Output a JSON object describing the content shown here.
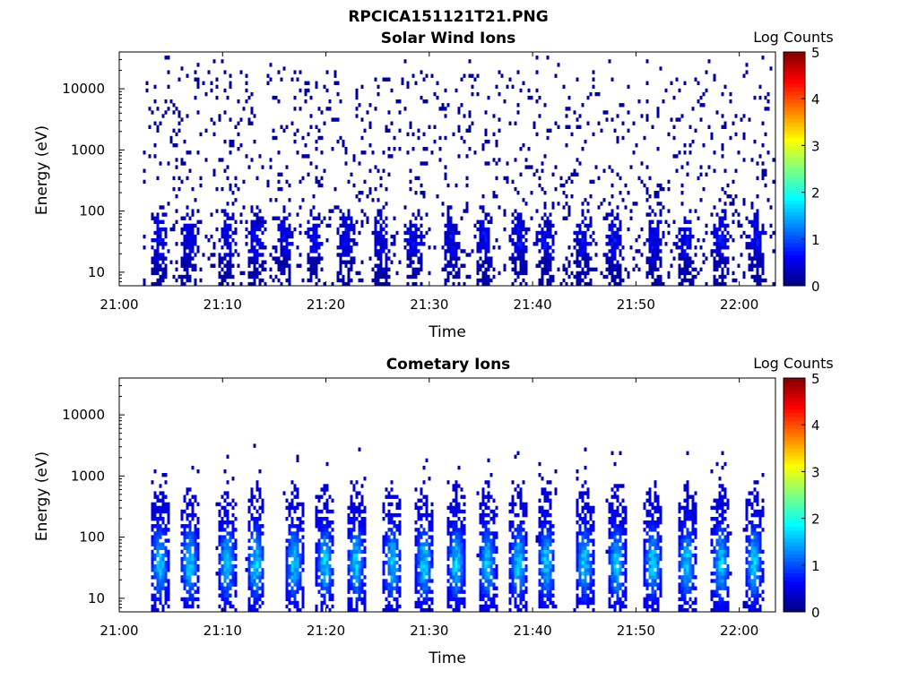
{
  "figure_title": "RPCICA151121T21.PNG",
  "chart_data": [
    {
      "type": "heatmap",
      "title": "Solar Wind Ions",
      "xlabel": "Time",
      "ylabel": "Energy (eV)",
      "yscale": "log",
      "ylim": [
        6,
        40000
      ],
      "xlim_minutes": [
        0,
        63.5
      ],
      "x_ticks": [
        "21:00",
        "21:10",
        "21:20",
        "21:30",
        "21:40",
        "21:50",
        "22:00"
      ],
      "y_ticks": [
        "10",
        "100",
        "1000",
        "10000"
      ],
      "colorbar": {
        "label": "Log Counts",
        "range": [
          0,
          5
        ],
        "ticks": [
          "0",
          "1",
          "2",
          "3",
          "4",
          "5"
        ],
        "colormap": "jet"
      },
      "data_start_minute": 2.3,
      "bursts_minutes": [
        3.8,
        6.7,
        10.3,
        13.1,
        15.8,
        18.7,
        21.9,
        25.3,
        28.4,
        32.0,
        35.2,
        38.5,
        41.1,
        44.8,
        47.8,
        51.6,
        54.7,
        58.1,
        61.5
      ],
      "grid": false
    },
    {
      "type": "heatmap",
      "title": "Cometary Ions",
      "xlabel": "Time",
      "ylabel": "Energy (eV)",
      "yscale": "log",
      "ylim": [
        6,
        40000
      ],
      "xlim_minutes": [
        0,
        63.5
      ],
      "x_ticks": [
        "21:00",
        "21:10",
        "21:20",
        "21:30",
        "21:40",
        "21:50",
        "22:00"
      ],
      "y_ticks": [
        "10",
        "100",
        "1000",
        "10000"
      ],
      "colorbar": {
        "label": "Log Counts",
        "range": [
          0,
          5
        ],
        "ticks": [
          "0",
          "1",
          "2",
          "3",
          "4",
          "5"
        ],
        "colormap": "jet"
      },
      "data_start_minute": 2.3,
      "bursts_minutes": [
        3.8,
        6.7,
        10.3,
        13.1,
        16.8,
        19.8,
        22.8,
        26.3,
        29.4,
        32.5,
        35.5,
        38.5,
        41.2,
        44.9,
        48.0,
        51.5,
        54.8,
        58.1,
        61.3
      ],
      "grid": false
    }
  ]
}
